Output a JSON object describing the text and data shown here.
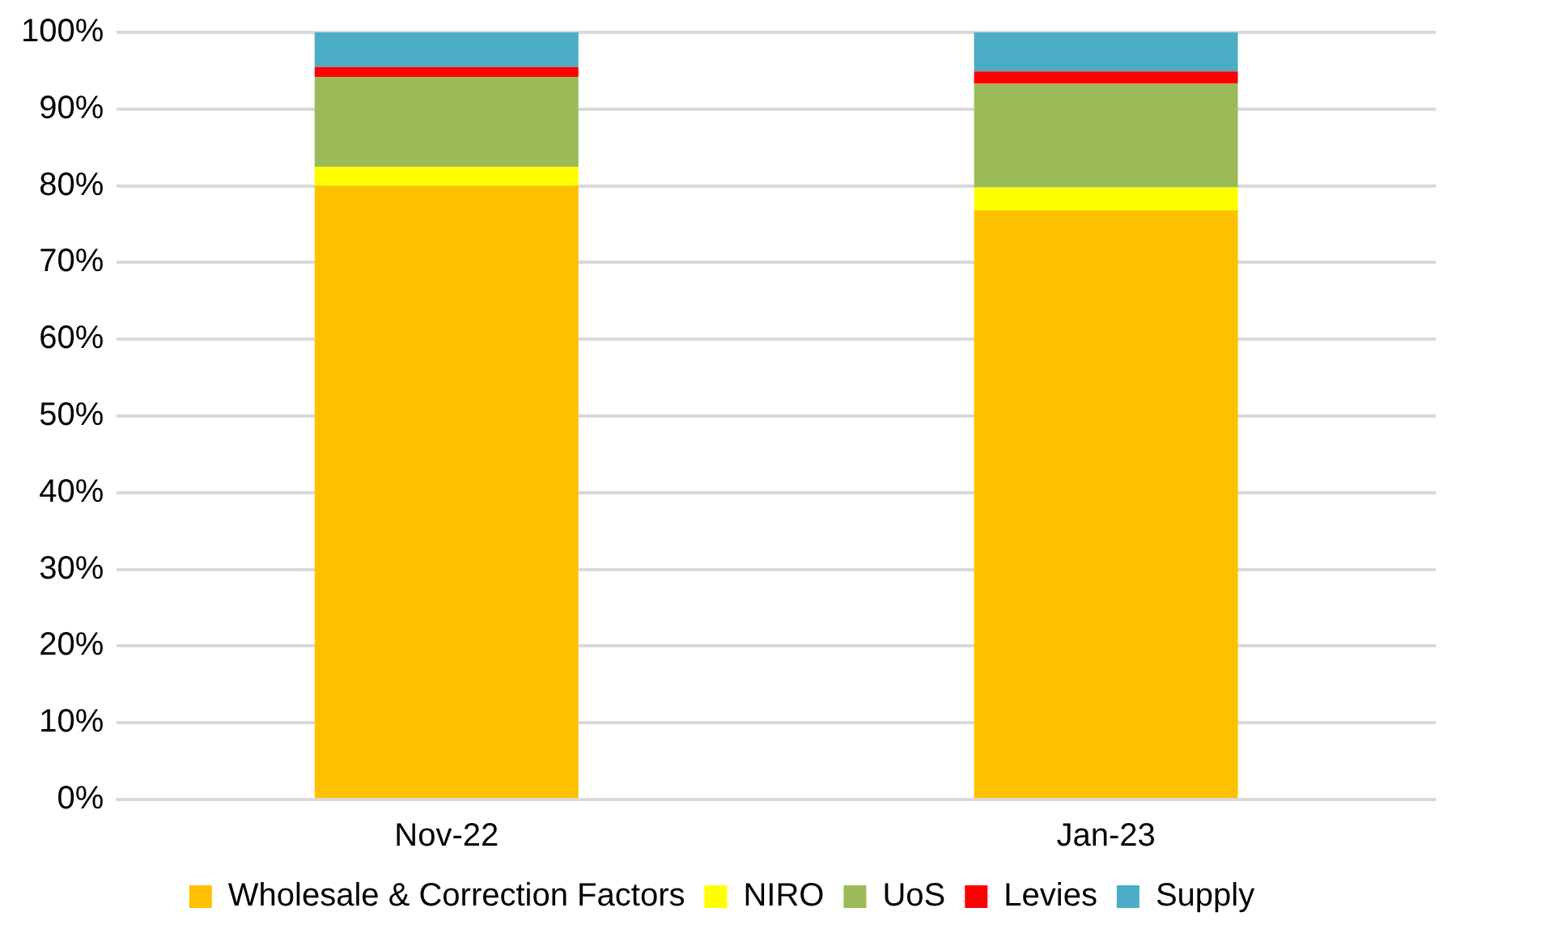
{
  "chart_data": {
    "type": "bar",
    "stacked": true,
    "categories": [
      "Nov-22",
      "Jan-23"
    ],
    "series": [
      {
        "name": "Wholesale & Correction Factors",
        "color": "#ffc000",
        "values": [
          80.0,
          76.8
        ]
      },
      {
        "name": "NIRO",
        "color": "#ffff00",
        "values": [
          2.5,
          3.0
        ]
      },
      {
        "name": "UoS",
        "color": "#9bbb59",
        "values": [
          11.7,
          13.5
        ]
      },
      {
        "name": "Levies",
        "color": "#ff0000",
        "values": [
          1.3,
          1.6
        ]
      },
      {
        "name": "Supply",
        "color": "#4bacc6",
        "values": [
          4.5,
          5.1
        ]
      }
    ],
    "ylim": [
      0,
      100
    ],
    "yticks": [
      {
        "value": 0,
        "label": "0%"
      },
      {
        "value": 10,
        "label": "10%"
      },
      {
        "value": 20,
        "label": "20%"
      },
      {
        "value": 30,
        "label": "30%"
      },
      {
        "value": 40,
        "label": "40%"
      },
      {
        "value": 50,
        "label": "50%"
      },
      {
        "value": 60,
        "label": "60%"
      },
      {
        "value": 70,
        "label": "70%"
      },
      {
        "value": 80,
        "label": "80%"
      },
      {
        "value": 90,
        "label": "90%"
      },
      {
        "value": 100,
        "label": "100%"
      }
    ],
    "grid": "y",
    "legend": "bottom"
  }
}
